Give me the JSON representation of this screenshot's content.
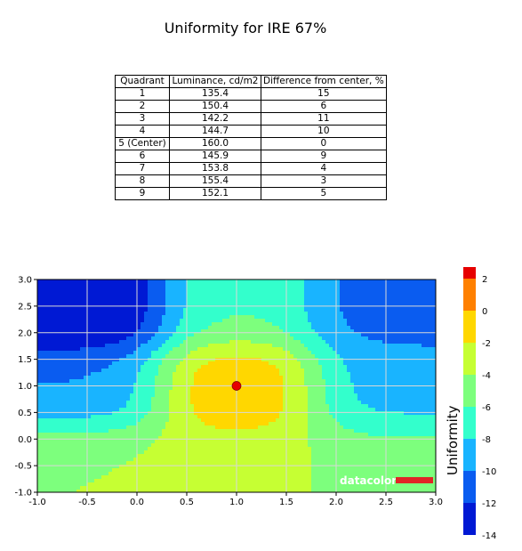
{
  "title": "Uniformity for IRE 67%",
  "table": {
    "headers": [
      "Quadrant",
      "Luminance, cd/m2",
      "Difference from center, %"
    ],
    "rows": [
      [
        "1",
        "135.4",
        "15"
      ],
      [
        "2",
        "150.4",
        "6"
      ],
      [
        "3",
        "142.2",
        "11"
      ],
      [
        "4",
        "144.7",
        "10"
      ],
      [
        "5 (Center)",
        "160.0",
        "0"
      ],
      [
        "6",
        "145.9",
        "9"
      ],
      [
        "7",
        "153.8",
        "4"
      ],
      [
        "8",
        "155.4",
        "3"
      ],
      [
        "9",
        "152.1",
        "5"
      ]
    ]
  },
  "watermark": "datacolor",
  "chart_data": {
    "type": "heatmap",
    "subtype": "filled-contour",
    "xlim": [
      -1.0,
      3.0
    ],
    "ylim": [
      -1.0,
      3.0
    ],
    "x_ticks": [
      "-1.0",
      "-0.5",
      "0.0",
      "0.5",
      "1.0",
      "1.5",
      "2.0",
      "2.5",
      "3.0"
    ],
    "y_ticks": [
      "-1.0",
      "-0.5",
      "0.0",
      "0.5",
      "1.0",
      "1.5",
      "2.0",
      "2.5",
      "3.0"
    ],
    "grid": true,
    "colorbar": {
      "label": "Uniformity",
      "ticks": [
        "2",
        "0",
        "-2",
        "-4",
        "-6",
        "-8",
        "-10",
        "-12",
        "-14"
      ],
      "levels": [
        -14,
        -12,
        -10,
        -8,
        -6,
        -4,
        -2,
        0,
        2
      ],
      "colors": [
        "#0019d4",
        "#0a5cf0",
        "#19b4ff",
        "#33ffcc",
        "#7dff7d",
        "#c6ff33",
        "#ffd700",
        "#ff8000",
        "#e60000"
      ]
    },
    "quadrant_points": [
      {
        "quadrant": 1,
        "x": -0.5,
        "y": 2.5,
        "value": -15
      },
      {
        "quadrant": 2,
        "x": 1.0,
        "y": 2.5,
        "value": -6
      },
      {
        "quadrant": 3,
        "x": 2.5,
        "y": 2.5,
        "value": -11
      },
      {
        "quadrant": 4,
        "x": -0.5,
        "y": 1.0,
        "value": -10
      },
      {
        "quadrant": 5,
        "x": 1.0,
        "y": 1.0,
        "value": 0
      },
      {
        "quadrant": 6,
        "x": 2.5,
        "y": 1.0,
        "value": -9
      },
      {
        "quadrant": 7,
        "x": -0.5,
        "y": -0.5,
        "value": -4
      },
      {
        "quadrant": 8,
        "x": 1.0,
        "y": -0.5,
        "value": -3
      },
      {
        "quadrant": 9,
        "x": 2.5,
        "y": -0.5,
        "value": -5
      }
    ]
  }
}
